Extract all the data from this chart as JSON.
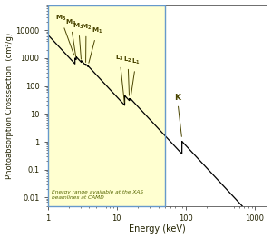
{
  "xlabel": "Energy (keV)",
  "ylabel": "Photoabsorption Crosssection  (cm²/g)",
  "xlim": [
    1,
    1500
  ],
  "ylim": [
    0.005,
    80000
  ],
  "bg_color": "#ffffd0",
  "bg_rect_xmax": 50,
  "border_color": "#6699cc",
  "line_color": "#000000",
  "annotation_color": "#4a4500",
  "camd_text": "Energy range available at the XAS\nbeamlines at CAMD",
  "m5_e": 2.484,
  "m4_e": 2.586,
  "m3_e": 3.066,
  "m2_e": 3.554,
  "m1_e": 3.851,
  "l3_e": 13.035,
  "l2_e": 15.2,
  "l1_e": 15.861,
  "k_e": 88.005,
  "yticks": [
    0.01,
    0.1,
    1,
    10,
    100,
    1000,
    10000
  ],
  "ytick_labels": [
    "0.01",
    "0.1",
    "1",
    "10",
    "100",
    "1000",
    "10000"
  ],
  "xticks": [
    1,
    10,
    100,
    1000
  ],
  "xtick_labels": [
    "1",
    "10",
    "100",
    "1000"
  ]
}
